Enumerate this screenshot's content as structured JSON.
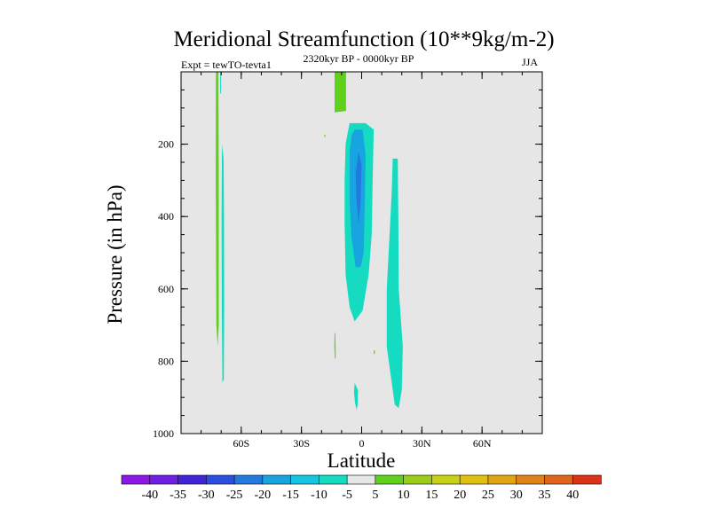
{
  "chart_data": {
    "type": "filled-contour",
    "title": "Meridional Streamfunction (10**9kg/m-2)",
    "subtitle_left": "Expt = tewTO-tevta1",
    "subtitle_center": "2320kyr BP - 0000kyr BP",
    "subtitle_right": "JJA",
    "xlabel": "Latitude",
    "ylabel": "Pressure (in hPa)",
    "xlim": [
      -90,
      90
    ],
    "ylim": [
      1000,
      0
    ],
    "x_ticks": [
      {
        "value": -60,
        "label": "60S"
      },
      {
        "value": -30,
        "label": "30S"
      },
      {
        "value": 0,
        "label": "0"
      },
      {
        "value": 30,
        "label": "30N"
      },
      {
        "value": 60,
        "label": "60N"
      }
    ],
    "y_ticks": [
      {
        "value": 200,
        "label": "200"
      },
      {
        "value": 400,
        "label": "400"
      },
      {
        "value": 600,
        "label": "600"
      },
      {
        "value": 800,
        "label": "800"
      },
      {
        "value": 1000,
        "label": "1000"
      }
    ],
    "y_minor_step": 50,
    "x_minor_step": 10,
    "background_color": "#e6e6e6",
    "colorbar": {
      "levels": [
        "-40",
        "-35",
        "-30",
        "-25",
        "-20",
        "-15",
        "-10",
        "-5",
        "5",
        "10",
        "15",
        "20",
        "25",
        "30",
        "35",
        "40"
      ],
      "colors": [
        "#8c17e6",
        "#6f1ee6",
        "#4223d9",
        "#2c4ee0",
        "#2379e0",
        "#17a5e0",
        "#14c6e0",
        "#15dcc0",
        "#e6e6e6",
        "#5fd11b",
        "#9acd17",
        "#c8d013",
        "#e0c00f",
        "#e0a513",
        "#e0821a",
        "#e0641d",
        "#dc3218"
      ]
    },
    "regions": [
      {
        "name": "sh-polar-green-strip",
        "color": "#5fd11b",
        "points": [
          [
            -72.6,
            0
          ],
          [
            -71.4,
            0
          ],
          [
            -71.2,
            300
          ],
          [
            -71.2,
            700
          ],
          [
            -71.8,
            760
          ],
          [
            -72.4,
            700
          ],
          [
            -72.7,
            300
          ]
        ]
      },
      {
        "name": "sh-polar-cyan-strip",
        "color": "#15dcc0",
        "points": [
          [
            -69.6,
            200
          ],
          [
            -68.8,
            240
          ],
          [
            -68.6,
            400
          ],
          [
            -68.5,
            650
          ],
          [
            -68.7,
            850
          ],
          [
            -69.4,
            860
          ],
          [
            -69.7,
            650
          ],
          [
            -69.8,
            400
          ]
        ]
      },
      {
        "name": "sh-polar-thin-line",
        "color": "#15dcc0",
        "points": [
          [
            -70.5,
            0
          ],
          [
            -70.1,
            0
          ],
          [
            -70.1,
            60
          ],
          [
            -70.5,
            60
          ]
        ]
      },
      {
        "name": "upper-green-cell",
        "color": "#5fd11b",
        "points": [
          [
            -13.5,
            0
          ],
          [
            -7.8,
            0
          ],
          [
            -7.8,
            108
          ],
          [
            -13.5,
            112
          ]
        ]
      },
      {
        "name": "small-green-dot",
        "color": "#5fd11b",
        "points": [
          [
            -18.6,
            174
          ],
          [
            -18.1,
            174
          ],
          [
            -18.1,
            180
          ],
          [
            -18.6,
            180
          ]
        ]
      },
      {
        "name": "lower-green-sliver",
        "color": "#5fd11b",
        "points": [
          [
            -13.5,
            720
          ],
          [
            -13.1,
            725
          ],
          [
            -12.9,
            790
          ],
          [
            -13.3,
            795
          ],
          [
            -13.6,
            760
          ]
        ]
      },
      {
        "name": "equatorial-cell-outer",
        "color": "#15dcc0",
        "points": [
          [
            -6,
            142
          ],
          [
            2,
            142
          ],
          [
            6,
            160
          ],
          [
            5.5,
            300
          ],
          [
            5,
            450
          ],
          [
            3.5,
            560
          ],
          [
            0.5,
            660
          ],
          [
            -3.5,
            690
          ],
          [
            -6,
            650
          ],
          [
            -8,
            560
          ],
          [
            -8.5,
            420
          ],
          [
            -8.5,
            300
          ],
          [
            -8,
            200
          ]
        ]
      },
      {
        "name": "equatorial-cell-mid",
        "color": "#17a5e0",
        "points": [
          [
            -3.5,
            160
          ],
          [
            0.5,
            160
          ],
          [
            2,
            230
          ],
          [
            1.5,
            380
          ],
          [
            1,
            500
          ],
          [
            -0.5,
            540
          ],
          [
            -3,
            540
          ],
          [
            -5,
            460
          ],
          [
            -6,
            360
          ],
          [
            -6,
            220
          ],
          [
            -5,
            175
          ]
        ]
      },
      {
        "name": "equatorial-cell-core",
        "color": "#2379e0",
        "points": [
          [
            -1.5,
            220
          ],
          [
            0,
            260
          ],
          [
            -0.5,
            360
          ],
          [
            -1.5,
            420
          ],
          [
            -2.5,
            360
          ],
          [
            -3,
            280
          ]
        ]
      },
      {
        "name": "equatorial-cell-bottom-blob",
        "color": "#15dcc0",
        "points": [
          [
            -3.5,
            860
          ],
          [
            -1.8,
            880
          ],
          [
            -2,
            920
          ],
          [
            -2.5,
            935
          ],
          [
            -3.3,
            915
          ],
          [
            -3.8,
            885
          ]
        ]
      },
      {
        "name": "nh-cell",
        "color": "#15dcc0",
        "points": [
          [
            15.5,
            240
          ],
          [
            18,
            240
          ],
          [
            18.3,
            420
          ],
          [
            18.5,
            600
          ],
          [
            20.5,
            760
          ],
          [
            20,
            880
          ],
          [
            18.5,
            930
          ],
          [
            16.5,
            920
          ],
          [
            12.5,
            760
          ],
          [
            12.5,
            600
          ],
          [
            14.2,
            420
          ],
          [
            15,
            330
          ]
        ]
      },
      {
        "name": "small-mark-right",
        "color": "#5fd11b",
        "points": [
          [
            6,
            770
          ],
          [
            6.6,
            770
          ],
          [
            6.6,
            780
          ],
          [
            6,
            780
          ]
        ]
      }
    ]
  }
}
